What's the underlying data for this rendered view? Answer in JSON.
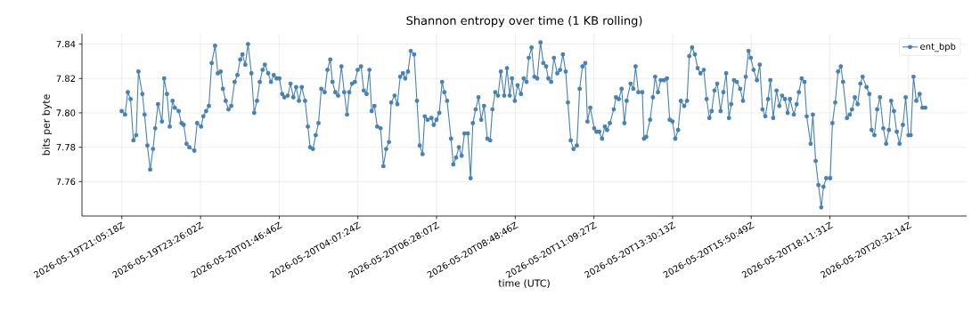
{
  "chart_data": {
    "type": "line",
    "title": "Shannon entropy over time (1 KB rolling)",
    "xlabel": "time (UTC)",
    "ylabel": "bits per byte",
    "xlim": [
      "2026-05-19T19:54",
      "2026-05-20T22:16"
    ],
    "xticks": [
      {
        "value": "2026-05-19T21:05:18",
        "label": "2026-05-19T21:05:18Z"
      },
      {
        "value": "2026-05-19T23:26:02",
        "label": "2026-05-19T23:26:02Z"
      },
      {
        "value": "2026-05-20T01:46:46",
        "label": "2026-05-20T01:46:46Z"
      },
      {
        "value": "2026-05-20T04:07:24",
        "label": "2026-05-20T04:07:24Z"
      },
      {
        "value": "2026-05-20T06:28:07",
        "label": "2026-05-20T06:28:07Z"
      },
      {
        "value": "2026-05-20T08:48:46",
        "label": "2026-05-20T08:48:46Z"
      },
      {
        "value": "2026-05-20T11:09:27",
        "label": "2026-05-20T11:09:27Z"
      },
      {
        "value": "2026-05-20T13:30:13",
        "label": "2026-05-20T13:30:13Z"
      },
      {
        "value": "2026-05-20T15:50:49",
        "label": "2026-05-20T15:50:49Z"
      },
      {
        "value": "2026-05-20T18:11:31",
        "label": "2026-05-20T18:11:31Z"
      },
      {
        "value": "2026-05-20T20:32:14",
        "label": "2026-05-20T20:32:14Z"
      }
    ],
    "ylim": [
      7.74,
      7.846
    ],
    "yticks": [
      7.76,
      7.78,
      {
        "value": 7.8,
        "label": "7.80"
      },
      7.82,
      7.84
    ],
    "grid": true,
    "legend": "top right",
    "marker": "circle",
    "line_style": "solid",
    "series": [
      {
        "name": "ent_bpb",
        "color": "#4682b4",
        "x": [
          "2026-05-19T21:05",
          "2026-05-19T21:11",
          "2026-05-19T21:16",
          "2026-05-19T21:21",
          "2026-05-19T21:26",
          "2026-05-19T21:31",
          "2026-05-19T21:35",
          "2026-05-19T21:42",
          "2026-05-19T21:46",
          "2026-05-19T21:51",
          "2026-05-19T21:56",
          "2026-05-19T22:01",
          "2026-05-19T22:05",
          "2026-05-19T22:10",
          "2026-05-19T22:17",
          "2026-05-19T22:21",
          "2026-05-19T22:26",
          "2026-05-19T22:31",
          "2026-05-19T22:36",
          "2026-05-19T22:40",
          "2026-05-19T22:47",
          "2026-05-19T22:52",
          "2026-05-19T22:56",
          "2026-05-19T23:01",
          "2026-05-19T23:06",
          "2026-05-19T23:15",
          "2026-05-19T23:20",
          "2026-05-19T23:27",
          "2026-05-19T23:31",
          "2026-05-19T23:36",
          "2026-05-19T23:41",
          "2026-05-19T23:46",
          "2026-05-19T23:52",
          "2026-05-19T23:57",
          "2026-05-20T00:02",
          "2026-05-20T00:06",
          "2026-05-20T00:11",
          "2026-05-20T00:16",
          "2026-05-20T00:21",
          "2026-05-20T00:27",
          "2026-05-20T00:32",
          "2026-05-20T00:37",
          "2026-05-20T00:41",
          "2026-05-20T00:46",
          "2026-05-20T00:51",
          "2026-05-20T00:57",
          "2026-05-20T01:02",
          "2026-05-20T01:07",
          "2026-05-20T01:12",
          "2026-05-20T01:17",
          "2026-05-20T01:21",
          "2026-05-20T01:27",
          "2026-05-20T01:32",
          "2026-05-20T01:37",
          "2026-05-20T01:42",
          "2026-05-20T01:47",
          "2026-05-20T01:52",
          "2026-05-20T01:56",
          "2026-05-20T02:02",
          "2026-05-20T02:07",
          "2026-05-20T02:12",
          "2026-05-20T02:17",
          "2026-05-20T02:22",
          "2026-05-20T02:27",
          "2026-05-20T02:33",
          "2026-05-20T02:38",
          "2026-05-20T02:42",
          "2026-05-20T02:47",
          "2026-05-20T02:52",
          "2026-05-20T02:57",
          "2026-05-20T03:02",
          "2026-05-20T03:08",
          "2026-05-20T03:13",
          "2026-05-20T03:18",
          "2026-05-20T03:22",
          "2026-05-20T03:27",
          "2026-05-20T03:32",
          "2026-05-20T03:38",
          "2026-05-20T03:43",
          "2026-05-20T03:48",
          "2026-05-20T03:52",
          "2026-05-20T03:57",
          "2026-05-20T04:02",
          "2026-05-20T04:07",
          "2026-05-20T04:13",
          "2026-05-20T04:18",
          "2026-05-20T04:23",
          "2026-05-20T04:28",
          "2026-05-20T04:32",
          "2026-05-20T04:37",
          "2026-05-20T04:42",
          "2026-05-20T04:48",
          "2026-05-20T04:53",
          "2026-05-20T04:58",
          "2026-05-20T05:03",
          "2026-05-20T05:07",
          "2026-05-20T05:13",
          "2026-05-20T05:18",
          "2026-05-20T05:23",
          "2026-05-20T05:28",
          "2026-05-20T05:32",
          "2026-05-20T05:37",
          "2026-05-20T05:42",
          "2026-05-20T05:48",
          "2026-05-20T05:53",
          "2026-05-20T05:58",
          "2026-05-20T06:03",
          "2026-05-20T06:07",
          "2026-05-20T06:12",
          "2026-05-20T06:19",
          "2026-05-20T06:23",
          "2026-05-20T06:28",
          "2026-05-20T06:33",
          "2026-05-20T06:38",
          "2026-05-20T06:42",
          "2026-05-20T06:47",
          "2026-05-20T06:54",
          "2026-05-20T06:58",
          "2026-05-20T07:03",
          "2026-05-20T07:08",
          "2026-05-20T07:13",
          "2026-05-20T07:18",
          "2026-05-20T07:24",
          "2026-05-20T07:29",
          "2026-05-20T07:33",
          "2026-05-20T07:38",
          "2026-05-20T07:43",
          "2026-05-20T07:48",
          "2026-05-20T07:53",
          "2026-05-20T07:59",
          "2026-05-20T08:04",
          "2026-05-20T08:08",
          "2026-05-20T08:13",
          "2026-05-20T08:18",
          "2026-05-20T08:23",
          "2026-05-20T08:29",
          "2026-05-20T08:34",
          "2026-05-20T08:39",
          "2026-05-20T08:43",
          "2026-05-20T08:48",
          "2026-05-20T08:53",
          "2026-05-20T08:59",
          "2026-05-20T09:04",
          "2026-05-20T09:09",
          "2026-05-20T09:13",
          "2026-05-20T09:18",
          "2026-05-20T09:23",
          "2026-05-20T09:28",
          "2026-05-20T09:34",
          "2026-05-20T09:39",
          "2026-05-20T09:44",
          "2026-05-20T09:48",
          "2026-05-20T09:53",
          "2026-05-20T09:58",
          "2026-05-20T10:04",
          "2026-05-20T10:09",
          "2026-05-20T10:14",
          "2026-05-20T10:19",
          "2026-05-20T10:23",
          "2026-05-20T10:28",
          "2026-05-20T10:33",
          "2026-05-20T10:39",
          "2026-05-20T10:44",
          "2026-05-20T10:49",
          "2026-05-20T10:54",
          "2026-05-20T10:58",
          "2026-05-20T11:03",
          "2026-05-20T11:10",
          "2026-05-20T11:14",
          "2026-05-20T11:19",
          "2026-05-20T11:24",
          "2026-05-20T11:29",
          "2026-05-20T11:33",
          "2026-05-20T11:38",
          "2026-05-20T11:45",
          "2026-05-20T11:49",
          "2026-05-20T11:54",
          "2026-05-20T11:59",
          "2026-05-20T12:04",
          "2026-05-20T12:08",
          "2026-05-20T12:15",
          "2026-05-20T12:20",
          "2026-05-20T12:24",
          "2026-05-20T12:29",
          "2026-05-20T12:36",
          "2026-05-20T12:39",
          "2026-05-20T12:43",
          "2026-05-20T12:50",
          "2026-05-20T12:55",
          "2026-05-20T12:59",
          "2026-05-20T13:04",
          "2026-05-20T13:09",
          "2026-05-20T13:15",
          "2026-05-20T13:20",
          "2026-05-20T13:25",
          "2026-05-20T13:30",
          "2026-05-20T13:35",
          "2026-05-20T13:40",
          "2026-05-20T13:45",
          "2026-05-20T13:51",
          "2026-05-20T13:56",
          "2026-05-20T14:00",
          "2026-05-20T14:05",
          "2026-05-20T14:10",
          "2026-05-20T14:15",
          "2026-05-20T14:20",
          "2026-05-20T14:26",
          "2026-05-20T14:31",
          "2026-05-20T14:36",
          "2026-05-20T14:40",
          "2026-05-20T14:45",
          "2026-05-20T14:50",
          "2026-05-20T14:56",
          "2026-05-20T15:01",
          "2026-05-20T15:06",
          "2026-05-20T15:11",
          "2026-05-20T15:15",
          "2026-05-20T15:20",
          "2026-05-20T15:25",
          "2026-05-20T15:31",
          "2026-05-20T15:36",
          "2026-05-20T15:41",
          "2026-05-20T15:46",
          "2026-05-20T15:50",
          "2026-05-20T15:55",
          "2026-05-20T16:01",
          "2026-05-20T16:06",
          "2026-05-20T16:11",
          "2026-05-20T16:16",
          "2026-05-20T16:21",
          "2026-05-20T16:25",
          "2026-05-20T16:30",
          "2026-05-20T16:36",
          "2026-05-20T16:41",
          "2026-05-20T16:46",
          "2026-05-20T16:51",
          "2026-05-20T16:56",
          "2026-05-20T17:00",
          "2026-05-20T17:07",
          "2026-05-20T17:12",
          "2026-05-20T17:16",
          "2026-05-20T17:21",
          "2026-05-20T17:26",
          "2026-05-20T17:30",
          "2026-05-20T17:37",
          "2026-05-20T17:41",
          "2026-05-20T17:46",
          "2026-05-20T17:51",
          "2026-05-20T17:56",
          "2026-05-20T18:00",
          "2026-05-20T18:05",
          "2026-05-20T18:12",
          "2026-05-20T18:16",
          "2026-05-20T18:21",
          "2026-05-20T18:26",
          "2026-05-20T18:31",
          "2026-05-20T18:35",
          "2026-05-20T18:42",
          "2026-05-20T18:47",
          "2026-05-20T18:51",
          "2026-05-20T18:56",
          "2026-05-20T19:01",
          "2026-05-20T19:06",
          "2026-05-20T19:10",
          "2026-05-20T19:17",
          "2026-05-20T19:22",
          "2026-05-20T19:26",
          "2026-05-20T19:31",
          "2026-05-20T19:36",
          "2026-05-20T19:41",
          "2026-05-20T19:47",
          "2026-05-20T19:52",
          "2026-05-20T19:57",
          "2026-05-20T20:01",
          "2026-05-20T20:06",
          "2026-05-20T20:11",
          "2026-05-20T20:16",
          "2026-05-20T20:22",
          "2026-05-20T20:27",
          "2026-05-20T20:32",
          "2026-05-20T20:36",
          "2026-05-20T20:41",
          "2026-05-20T20:46",
          "2026-05-20T20:52",
          "2026-05-20T20:57",
          "2026-05-20T21:02"
        ],
        "values": [
          7.801,
          7.799,
          7.812,
          7.808,
          7.784,
          7.787,
          7.824,
          7.811,
          7.799,
          7.781,
          7.767,
          7.779,
          7.791,
          7.805,
          7.795,
          7.82,
          7.811,
          7.792,
          7.807,
          7.803,
          7.801,
          7.794,
          7.793,
          7.782,
          7.78,
          7.778,
          7.794,
          7.792,
          7.798,
          7.801,
          7.804,
          7.829,
          7.839,
          7.823,
          7.824,
          7.814,
          7.807,
          7.802,
          7.804,
          7.818,
          7.822,
          7.831,
          7.834,
          7.828,
          7.84,
          7.823,
          7.8,
          7.807,
          7.818,
          7.825,
          7.828,
          7.823,
          7.818,
          7.822,
          7.82,
          7.82,
          7.811,
          7.809,
          7.81,
          7.817,
          7.809,
          7.815,
          7.807,
          7.815,
          7.807,
          7.792,
          7.78,
          7.779,
          7.787,
          7.794,
          7.814,
          7.812,
          7.825,
          7.831,
          7.818,
          7.812,
          7.81,
          7.827,
          7.812,
          7.799,
          7.812,
          7.817,
          7.818,
          7.825,
          7.827,
          7.813,
          7.811,
          7.825,
          7.801,
          7.804,
          7.792,
          7.791,
          7.769,
          7.779,
          7.783,
          7.806,
          7.81,
          7.805,
          7.821,
          7.823,
          7.82,
          7.824,
          7.836,
          7.834,
          7.807,
          7.781,
          7.776,
          7.798,
          7.796,
          7.797,
          7.793,
          7.796,
          7.8,
          7.818,
          7.812,
          7.807,
          7.785,
          7.77,
          7.774,
          7.78,
          7.775,
          7.788,
          7.788,
          7.762,
          7.794,
          7.802,
          7.809,
          7.796,
          7.804,
          7.785,
          7.784,
          7.802,
          7.812,
          7.81,
          7.824,
          7.81,
          7.826,
          7.81,
          7.82,
          7.807,
          7.816,
          7.811,
          7.82,
          7.818,
          7.832,
          7.838,
          7.821,
          7.82,
          7.841,
          7.829,
          7.827,
          7.82,
          7.818,
          7.832,
          7.823,
          7.825,
          7.834,
          7.824,
          7.806,
          7.784,
          7.779,
          7.781,
          7.814,
          7.827,
          7.829,
          7.795,
          7.803,
          7.791,
          7.789,
          7.789,
          7.785,
          7.792,
          7.79,
          7.794,
          7.802,
          7.809,
          7.808,
          7.814,
          7.794,
          7.807,
          7.817,
          7.814,
          7.827,
          7.812,
          7.812,
          7.785,
          7.786,
          7.796,
          7.809,
          7.821,
          7.812,
          7.819,
          7.819,
          7.82,
          7.796,
          7.795,
          7.785,
          7.79,
          7.807,
          7.804,
          7.807,
          7.833,
          7.838,
          7.834,
          7.826,
          7.823,
          7.825,
          7.808,
          7.797,
          7.801,
          7.813,
          7.817,
          7.801,
          7.812,
          7.823,
          7.797,
          7.805,
          7.819,
          7.818,
          7.814,
          7.807,
          7.821,
          7.836,
          7.832,
          7.825,
          7.819,
          7.828,
          7.802,
          7.798,
          7.808,
          7.819,
          7.797,
          7.813,
          7.804,
          7.81,
          7.808,
          7.8,
          7.808,
          7.799,
          7.805,
          7.812,
          7.82,
          7.818,
          7.798,
          7.782,
          7.799,
          7.772,
          7.758,
          7.745,
          7.757,
          7.762,
          7.762,
          7.794,
          7.806,
          7.824,
          7.827,
          7.818,
          7.797,
          7.799,
          7.802,
          7.809,
          7.805,
          7.817,
          7.821,
          7.815,
          7.811,
          7.79,
          7.787,
          7.802,
          7.809,
          7.791,
          7.782,
          7.79,
          7.807,
          7.801,
          7.789,
          7.782,
          7.793,
          7.809,
          7.787,
          7.787,
          7.821,
          7.807,
          7.811,
          7.803,
          7.803
        ]
      }
    ]
  }
}
